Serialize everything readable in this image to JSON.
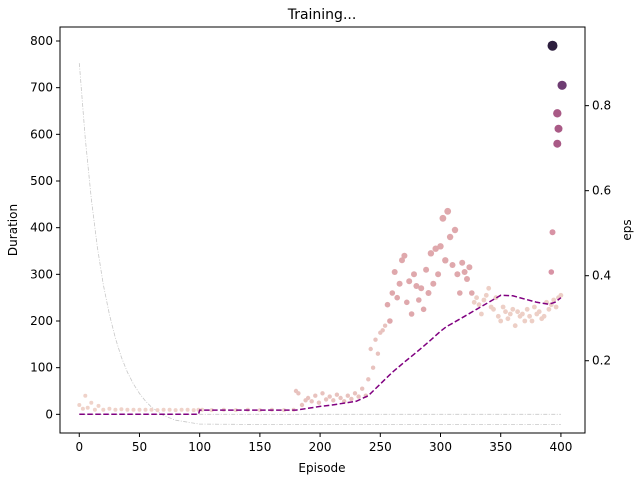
{
  "chart_data": {
    "type": "scatter",
    "title": "Training...",
    "xlabel": "Episode",
    "ylabel": "Duration",
    "y2label": "eps",
    "xlim": [
      -16,
      420
    ],
    "ylim": [
      -40,
      830
    ],
    "y2lim": [
      0.03,
      0.985
    ],
    "x_ticks": [
      0,
      50,
      100,
      150,
      200,
      250,
      300,
      350,
      400
    ],
    "y_ticks": [
      0,
      100,
      200,
      300,
      400,
      500,
      600,
      700,
      800
    ],
    "y2_ticks": [
      0.2,
      0.4,
      0.6,
      0.8
    ],
    "y2_tick_labels": [
      "0.2",
      "0.4",
      "0.6",
      "0.8"
    ],
    "grid": false,
    "colors": {
      "light": "#efd2c9",
      "mid": "#d89aa8",
      "dark": "#8a4b7e",
      "darkest": "#2d1e3e",
      "mean": "#800080",
      "eps": "#c8c8c8"
    },
    "mean_line": {
      "x": [
        0,
        99,
        100,
        180,
        190,
        200,
        210,
        220,
        230,
        240,
        250,
        260,
        270,
        280,
        290,
        300,
        305,
        310,
        320,
        330,
        340,
        350,
        360,
        370,
        380,
        390,
        395,
        400
      ],
      "y": [
        0,
        0,
        9,
        9,
        13,
        17,
        20,
        24,
        28,
        40,
        65,
        90,
        112,
        133,
        155,
        178,
        188,
        195,
        210,
        225,
        240,
        255,
        254,
        247,
        240,
        236,
        240,
        250
      ]
    },
    "eps_line": {
      "x": [
        0,
        5,
        10,
        15,
        20,
        25,
        30,
        35,
        40,
        45,
        50,
        55,
        60,
        70,
        80,
        100,
        150,
        200,
        250,
        300,
        350,
        400
      ],
      "y": [
        0.9,
        0.722,
        0.581,
        0.468,
        0.379,
        0.309,
        0.253,
        0.208,
        0.173,
        0.145,
        0.123,
        0.105,
        0.091,
        0.071,
        0.06,
        0.051,
        0.05,
        0.05,
        0.05,
        0.05,
        0.05,
        0.05
      ]
    },
    "bottom_line": {
      "x": [
        0,
        400
      ],
      "y": [
        0,
        0
      ]
    },
    "series": [
      {
        "x": [
          0,
          3,
          5,
          7,
          10,
          13,
          16,
          20,
          25,
          30,
          35,
          40,
          45,
          50,
          55,
          60,
          65,
          70,
          75,
          80,
          85,
          90,
          95,
          99,
          102,
          110,
          120,
          130,
          140,
          150,
          160,
          170,
          178
        ],
        "y": [
          20,
          12,
          40,
          14,
          25,
          10,
          18,
          10,
          12,
          10,
          11,
          10,
          10,
          10,
          10,
          10,
          9,
          10,
          10,
          9,
          10,
          10,
          9,
          10,
          10,
          9,
          10,
          9,
          10,
          9,
          10,
          9,
          10
        ],
        "sizes": [
          2,
          2,
          2,
          2,
          2,
          2,
          2,
          2,
          2,
          2,
          2,
          2,
          2,
          2,
          2,
          2,
          2,
          2,
          2,
          2,
          2,
          2,
          2,
          2,
          2,
          2,
          2,
          2,
          2,
          2,
          2,
          2,
          2
        ],
        "color": "#efd2c9"
      },
      {
        "x": [
          180,
          182,
          185,
          188,
          190,
          193,
          196,
          199,
          202,
          205,
          208,
          211,
          214,
          217,
          220,
          223,
          226,
          229,
          232,
          235,
          238,
          240,
          242,
          244,
          246,
          248,
          250,
          252,
          254
        ],
        "y": [
          50,
          45,
          20,
          30,
          35,
          28,
          40,
          25,
          45,
          32,
          38,
          30,
          42,
          35,
          28,
          40,
          33,
          45,
          38,
          55,
          40,
          75,
          140,
          100,
          160,
          130,
          175,
          180,
          190
        ],
        "sizes": [
          2.2,
          2.2,
          2.2,
          2.2,
          2.2,
          2.2,
          2.2,
          2.2,
          2.2,
          2.2,
          2.2,
          2.2,
          2.2,
          2.2,
          2.2,
          2.2,
          2.2,
          2.2,
          2.2,
          2.2,
          2.2,
          2.2,
          2.2,
          2.2,
          2.2,
          2.2,
          2.2,
          2.2,
          2.2
        ],
        "color": "#e8c2be"
      },
      {
        "x": [
          256,
          258,
          260,
          262,
          264,
          266,
          268,
          270,
          272,
          274,
          276,
          278,
          280,
          282,
          284,
          286,
          288,
          290,
          292,
          294,
          296,
          298,
          300,
          302,
          304,
          306,
          308,
          310,
          312,
          314,
          316,
          318,
          320,
          322,
          324,
          326
        ],
        "y": [
          235,
          200,
          260,
          305,
          250,
          280,
          330,
          340,
          240,
          285,
          215,
          300,
          275,
          245,
          270,
          225,
          310,
          260,
          345,
          280,
          355,
          300,
          360,
          420,
          330,
          435,
          380,
          320,
          395,
          300,
          260,
          325,
          305,
          290,
          315,
          260
        ],
        "sizes": [
          2.8,
          2.8,
          2.8,
          3,
          2.8,
          3,
          3,
          3,
          2.8,
          3,
          2.8,
          3,
          3,
          2.8,
          3,
          2.8,
          3,
          3,
          3.2,
          3,
          3.2,
          3,
          3.2,
          3.4,
          3.2,
          3.4,
          3.2,
          3,
          3.2,
          3,
          2.8,
          3,
          3,
          3,
          3,
          2.8
        ],
        "color": "#dfa8ac"
      },
      {
        "x": [
          328,
          330,
          332,
          334,
          336,
          338,
          340,
          342,
          344,
          346,
          348,
          350,
          352,
          354,
          356,
          358,
          360,
          362,
          364,
          366,
          368,
          370,
          372,
          374,
          376,
          378,
          380,
          382,
          384,
          386,
          388,
          390,
          392,
          394,
          396,
          398,
          400
        ],
        "y": [
          240,
          250,
          235,
          215,
          245,
          255,
          270,
          230,
          225,
          250,
          210,
          200,
          230,
          220,
          205,
          215,
          225,
          190,
          220,
          210,
          215,
          200,
          225,
          210,
          200,
          230,
          215,
          220,
          205,
          210,
          240,
          225,
          235,
          245,
          230,
          250,
          255
        ],
        "sizes": [
          2.4,
          2.4,
          2.4,
          2.4,
          2.4,
          2.4,
          2.4,
          2.4,
          2.4,
          2.4,
          2.4,
          2.4,
          2.4,
          2.4,
          2.4,
          2.4,
          2.4,
          2.4,
          2.4,
          2.4,
          2.4,
          2.4,
          2.4,
          2.4,
          2.4,
          2.4,
          2.4,
          2.4,
          2.4,
          2.4,
          2.4,
          2.4,
          2.4,
          2.4,
          2.4,
          2.4,
          2.4
        ],
        "color": "#edcfc6"
      },
      {
        "x": [
          392,
          393
        ],
        "y": [
          305,
          390
        ],
        "sizes": [
          2.8,
          3
        ],
        "color": "#d893a5"
      },
      {
        "x": [
          397,
          398,
          397
        ],
        "y": [
          580,
          612,
          645
        ],
        "sizes": [
          4,
          4,
          4.2
        ],
        "color": "#a95a86"
      },
      {
        "x": [
          401
        ],
        "y": [
          705
        ],
        "sizes": [
          4.6
        ],
        "color": "#6e3c72"
      },
      {
        "x": [
          393
        ],
        "y": [
          790
        ],
        "sizes": [
          5
        ],
        "color": "#2d1e3e"
      }
    ]
  }
}
